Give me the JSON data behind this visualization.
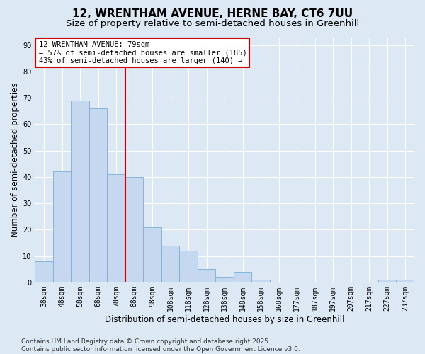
{
  "title": "12, WRENTHAM AVENUE, HERNE BAY, CT6 7UU",
  "subtitle": "Size of property relative to semi-detached houses in Greenhill",
  "xlabel": "Distribution of semi-detached houses by size in Greenhill",
  "ylabel": "Number of semi-detached properties",
  "categories": [
    "38sqm",
    "48sqm",
    "58sqm",
    "68sqm",
    "78sqm",
    "88sqm",
    "98sqm",
    "108sqm",
    "118sqm",
    "128sqm",
    "138sqm",
    "148sqm",
    "158sqm",
    "168sqm",
    "177sqm",
    "187sqm",
    "197sqm",
    "207sqm",
    "217sqm",
    "227sqm",
    "237sqm"
  ],
  "values": [
    8,
    42,
    69,
    66,
    41,
    40,
    21,
    14,
    12,
    5,
    2,
    4,
    1,
    0,
    0,
    0,
    0,
    0,
    0,
    1,
    1
  ],
  "bar_color": "#c5d8ef",
  "bar_edge_color": "#7aaed6",
  "property_label": "12 WRENTHAM AVENUE: 79sqm",
  "annotation_line1": "← 57% of semi-detached houses are smaller (185)",
  "annotation_line2": "43% of semi-detached houses are larger (140) →",
  "vline_color": "#cc0000",
  "vline_x": 4.5,
  "ylim": [
    0,
    93
  ],
  "yticks": [
    0,
    10,
    20,
    30,
    40,
    50,
    60,
    70,
    80,
    90
  ],
  "background_color": "#dce9f5",
  "grid_color": "#ffffff",
  "footer_line1": "Contains HM Land Registry data © Crown copyright and database right 2025.",
  "footer_line2": "Contains public sector information licensed under the Open Government Licence v3.0.",
  "title_fontsize": 11,
  "subtitle_fontsize": 9.5,
  "axis_label_fontsize": 8.5,
  "tick_fontsize": 7,
  "footer_fontsize": 6.5,
  "annot_fontsize": 7.5
}
